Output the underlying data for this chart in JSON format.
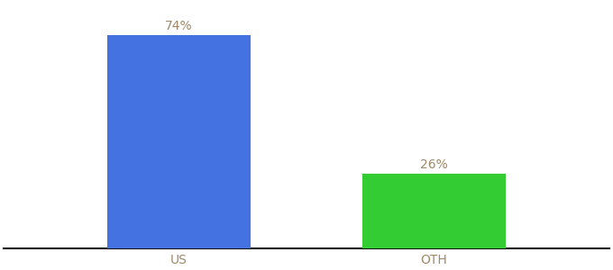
{
  "categories": [
    "US",
    "OTH"
  ],
  "values": [
    74,
    26
  ],
  "bar_colors": [
    "#4472e0",
    "#33cc33"
  ],
  "label_texts": [
    "74%",
    "26%"
  ],
  "label_color": "#a08868",
  "label_fontsize": 10,
  "tick_fontsize": 10,
  "tick_color": "#a08868",
  "background_color": "#ffffff",
  "bar_width": 0.18,
  "ylim": [
    0,
    85
  ],
  "spine_color": "#111111",
  "x_positions": [
    0.3,
    0.62
  ]
}
